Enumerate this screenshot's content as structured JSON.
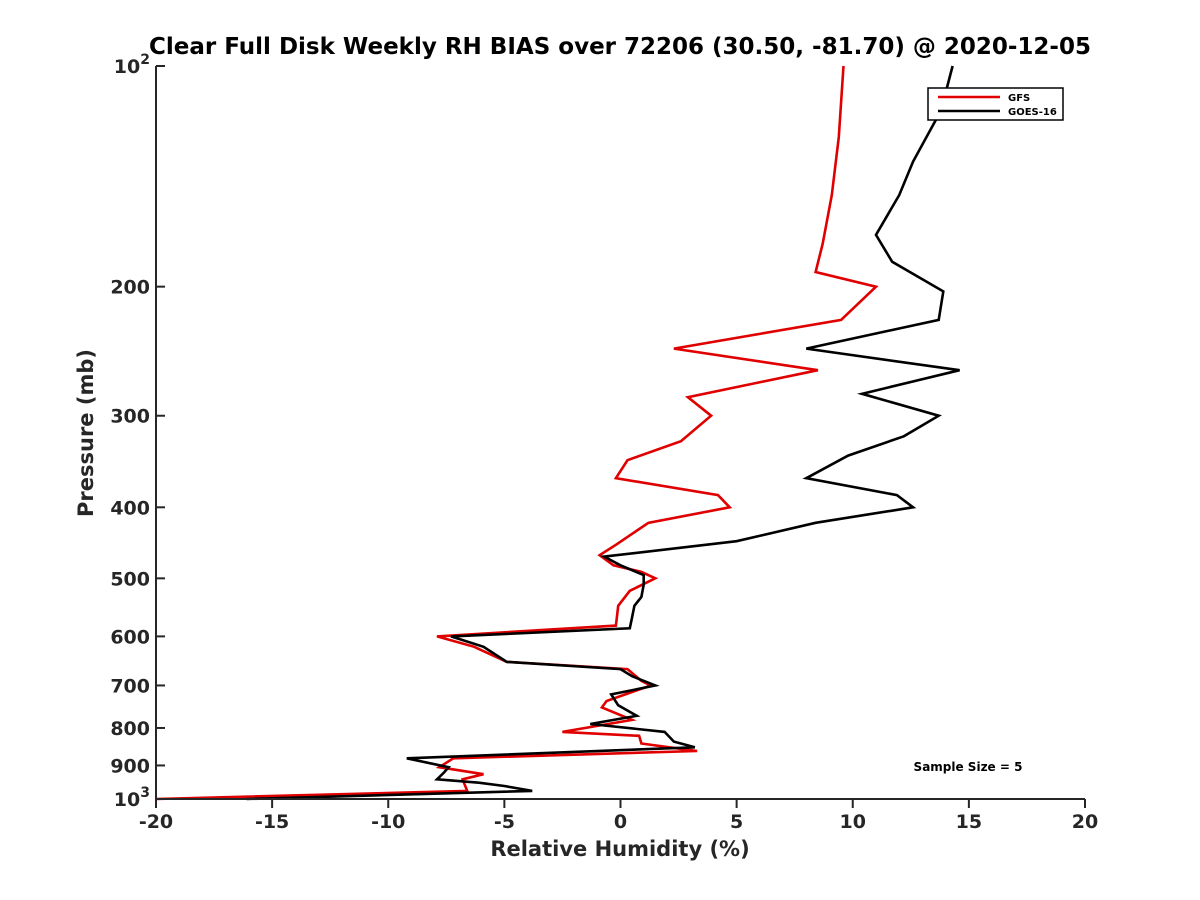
{
  "chart_data": {
    "type": "line",
    "title": "Clear Full Disk Weekly RH BIAS over 72206 (30.50, -81.70) @ 2020-12-05",
    "xlabel": "Relative Humidity (%)",
    "ylabel": "Pressure (mb)",
    "xlim": [
      -20,
      20
    ],
    "ylim": [
      100,
      1000
    ],
    "y_scale": "log",
    "y_reversed": true,
    "grid": false,
    "legend_position": "top-right",
    "x_ticks": [
      "-20",
      "-15",
      "-10",
      "-5",
      "0",
      "5",
      "10",
      "15",
      "20"
    ],
    "y_ticks": [
      {
        "value": 100,
        "base": "10",
        "exp": "2"
      },
      {
        "value": 200,
        "label": "200"
      },
      {
        "value": 300,
        "label": "300"
      },
      {
        "value": 400,
        "label": "400"
      },
      {
        "value": 500,
        "label": "500"
      },
      {
        "value": 600,
        "label": "600"
      },
      {
        "value": 700,
        "label": "700"
      },
      {
        "value": 800,
        "label": "800"
      },
      {
        "value": 900,
        "label": "900"
      },
      {
        "value": 1000,
        "base": "10",
        "exp": "3"
      }
    ],
    "annotation": "Sample Size = 5",
    "series": [
      {
        "name": "GFS",
        "color": "#e00000",
        "points": [
          [
            9.6,
            100
          ],
          [
            9.4,
            125
          ],
          [
            9.1,
            150
          ],
          [
            8.7,
            175
          ],
          [
            8.4,
            191
          ],
          [
            11.0,
            200
          ],
          [
            9.5,
            222
          ],
          [
            2.3,
            243
          ],
          [
            8.5,
            260
          ],
          [
            2.9,
            283
          ],
          [
            3.9,
            300
          ],
          [
            2.6,
            325
          ],
          [
            0.3,
            345
          ],
          [
            -0.2,
            365
          ],
          [
            4.2,
            385
          ],
          [
            4.7,
            400
          ],
          [
            1.2,
            420
          ],
          [
            -0.2,
            450
          ],
          [
            -0.9,
            465
          ],
          [
            -0.3,
            480
          ],
          [
            0.9,
            490
          ],
          [
            1.5,
            500
          ],
          [
            0.4,
            520
          ],
          [
            -0.1,
            545
          ],
          [
            -0.2,
            580
          ],
          [
            -7.9,
            600
          ],
          [
            -6.3,
            620
          ],
          [
            -4.9,
            650
          ],
          [
            0.3,
            665
          ],
          [
            0.9,
            690
          ],
          [
            1.3,
            700
          ],
          [
            -0.6,
            735
          ],
          [
            -0.8,
            750
          ],
          [
            0.5,
            780
          ],
          [
            -2.5,
            810
          ],
          [
            0.8,
            820
          ],
          [
            0.9,
            840
          ],
          [
            2.1,
            850
          ],
          [
            3.3,
            860
          ],
          [
            -7.2,
            880
          ],
          [
            -7.8,
            905
          ],
          [
            -5.9,
            925
          ],
          [
            -6.8,
            940
          ],
          [
            -6.6,
            975
          ],
          [
            -20.0,
            1000
          ]
        ]
      },
      {
        "name": "GOES-16",
        "color": "#000000",
        "points": [
          [
            14.3,
            100
          ],
          [
            13.8,
            115
          ],
          [
            12.6,
            135
          ],
          [
            12.0,
            150
          ],
          [
            11.0,
            170
          ],
          [
            11.7,
            185
          ],
          [
            13.9,
            203
          ],
          [
            13.7,
            222
          ],
          [
            8.0,
            243
          ],
          [
            14.6,
            260
          ],
          [
            10.4,
            280
          ],
          [
            13.7,
            300
          ],
          [
            12.2,
            320
          ],
          [
            9.8,
            340
          ],
          [
            8.0,
            365
          ],
          [
            11.9,
            385
          ],
          [
            12.6,
            400
          ],
          [
            8.4,
            420
          ],
          [
            5.0,
            445
          ],
          [
            -0.7,
            467
          ],
          [
            0.0,
            480
          ],
          [
            1.0,
            495
          ],
          [
            1.0,
            510
          ],
          [
            0.9,
            530
          ],
          [
            0.6,
            545
          ],
          [
            0.5,
            565
          ],
          [
            0.4,
            585
          ],
          [
            -7.3,
            600
          ],
          [
            -5.9,
            620
          ],
          [
            -4.9,
            650
          ],
          [
            0.0,
            665
          ],
          [
            0.5,
            680
          ],
          [
            1.5,
            700
          ],
          [
            -0.4,
            720
          ],
          [
            -0.1,
            745
          ],
          [
            0.7,
            770
          ],
          [
            -1.3,
            790
          ],
          [
            1.9,
            810
          ],
          [
            2.3,
            835
          ],
          [
            3.2,
            850
          ],
          [
            -9.2,
            880
          ],
          [
            -7.4,
            905
          ],
          [
            -7.6,
            920
          ],
          [
            -7.9,
            940
          ],
          [
            -6.1,
            950
          ],
          [
            -5.0,
            960
          ],
          [
            -3.8,
            975
          ],
          [
            -16.1,
            1000
          ]
        ]
      }
    ]
  }
}
